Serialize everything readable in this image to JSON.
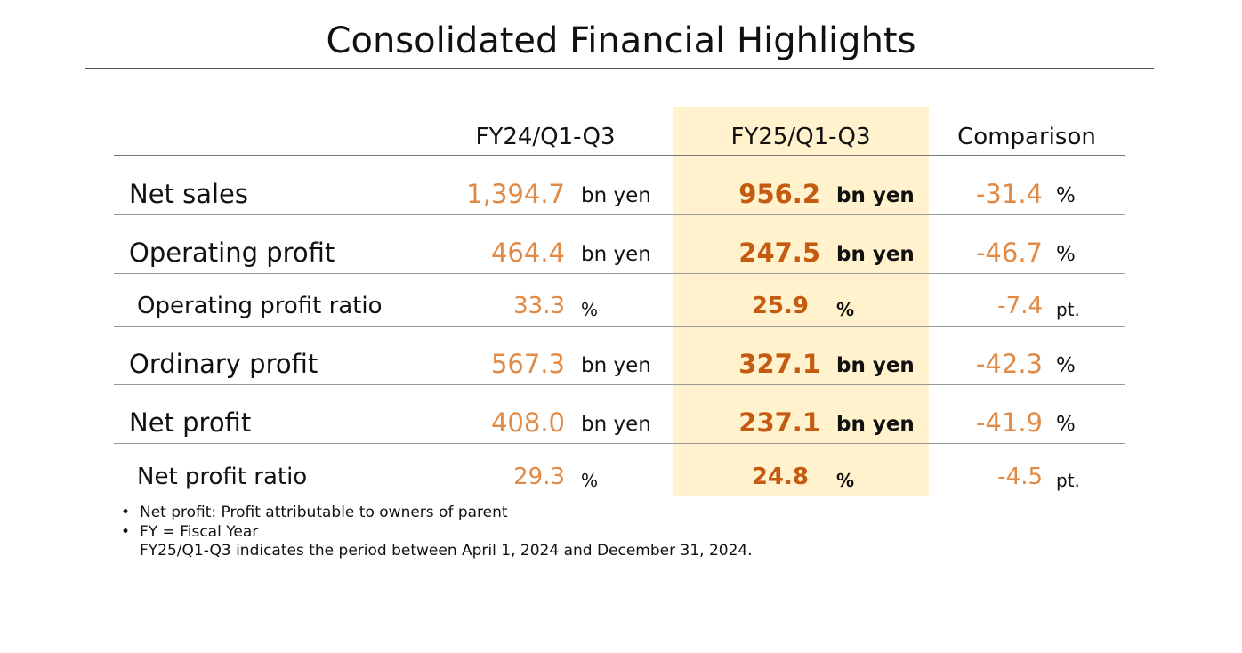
{
  "title": "Consolidated Financial Highlights",
  "columns": {
    "prev": "FY24/Q1-Q3",
    "cur": "FY25/Q1-Q3",
    "cmp": "Comparison"
  },
  "rows": [
    {
      "label": "Net sales",
      "prev": "1,394.7",
      "prev_unit": "bn yen",
      "cur": "956.2",
      "cur_unit": "bn yen",
      "cmp": "-31.4",
      "cmp_unit": "%"
    },
    {
      "label": "Operating profit",
      "prev": "464.4",
      "prev_unit": "bn yen",
      "cur": "247.5",
      "cur_unit": "bn yen",
      "cmp": "-46.7",
      "cmp_unit": "%"
    },
    {
      "label": "Operating profit ratio",
      "prev": "33.3",
      "prev_unit": "%",
      "cur": "25.9",
      "cur_unit": "%",
      "cmp": "-7.4",
      "cmp_unit": "pt."
    },
    {
      "label": "Ordinary profit",
      "prev": "567.3",
      "prev_unit": "bn yen",
      "cur": "327.1",
      "cur_unit": "bn yen",
      "cmp": "-42.3",
      "cmp_unit": "%"
    },
    {
      "label": "Net profit",
      "prev": "408.0",
      "prev_unit": "bn yen",
      "cur": "237.1",
      "cur_unit": "bn yen",
      "cmp": "-41.9",
      "cmp_unit": "%"
    },
    {
      "label": "Net profit ratio",
      "prev": "29.3",
      "prev_unit": "%",
      "cur": "24.8",
      "cur_unit": "%",
      "cmp": "-4.5",
      "cmp_unit": "pt."
    }
  ],
  "notes": {
    "bullet": "•",
    "note1": "Net profit: Profit attributable to owners of parent",
    "note2": "FY = Fiscal Year",
    "note3": "FY25/Q1-Q3 indicates the period between April 1, 2024 and December 31, 2024."
  },
  "colors": {
    "highlight": "#fff2cc",
    "value_prev": "#e08a46",
    "value_current": "#c55a11"
  }
}
